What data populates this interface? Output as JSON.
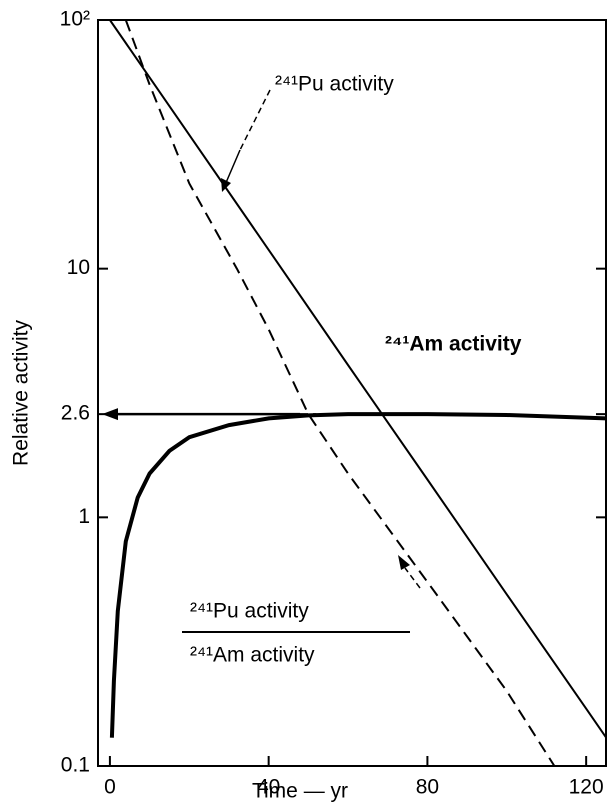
{
  "chart_data": {
    "type": "line",
    "xlabel": "Time — yr",
    "ylabel": "Relative activity",
    "xlim": [
      -3,
      125
    ],
    "xticks": [
      0,
      40,
      80,
      120
    ],
    "ylim": [
      0.1,
      100
    ],
    "yscale": "log",
    "yticks": [
      0.1,
      1,
      2.6,
      10,
      {
        "value": 100,
        "label": "10²"
      }
    ],
    "series": [
      {
        "name": "²⁴¹Pu activity",
        "color": "#000000",
        "dashed": false,
        "width": 2,
        "x": [
          0,
          20,
          40,
          60,
          80,
          100,
          120,
          130
        ],
        "values": [
          100,
          34.5,
          11.9,
          4.1,
          1.42,
          0.49,
          0.17,
          0.1
        ]
      },
      {
        "name": "²⁴¹Am activity",
        "color": "#000000",
        "dashed": false,
        "width": 4,
        "x": [
          0.5,
          1,
          2,
          4,
          7,
          10,
          15,
          20,
          30,
          40,
          50,
          60,
          80,
          100,
          125
        ],
        "values": [
          0.13,
          0.22,
          0.42,
          0.8,
          1.2,
          1.5,
          1.85,
          2.1,
          2.35,
          2.5,
          2.57,
          2.6,
          2.6,
          2.58,
          2.5
        ]
      },
      {
        "color": "#000000",
        "dashed": true,
        "width": 2,
        "x": [
          4,
          10,
          20,
          32,
          40,
          50,
          60,
          80,
          100,
          112
        ],
        "values": [
          100,
          55,
          22,
          10,
          5.7,
          2.6,
          1.5,
          0.55,
          0.2,
          0.1
        ]
      }
    ],
    "annotations": {
      "ratio_numerator": "²⁴¹Pu activity",
      "ratio_denominator": "²⁴¹Am activity"
    }
  }
}
